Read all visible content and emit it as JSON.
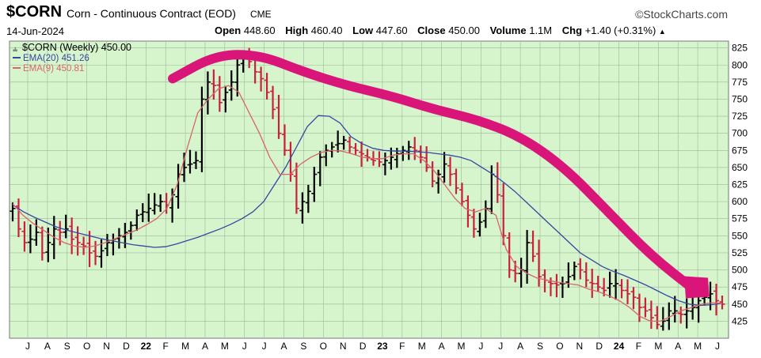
{
  "header": {
    "symbol": "$CORN",
    "description": "Corn - Continuous Contract (EOD)",
    "exchange": "CME",
    "source": "©StockCharts.com",
    "date": "14-Jun-2024",
    "open_label": "Open",
    "open": "448.60",
    "high_label": "High",
    "high": "460.40",
    "low_label": "Low",
    "low": "447.60",
    "close_label": "Close",
    "close": "450.00",
    "volume_label": "Volume",
    "volume": "1.1M",
    "chg_label": "Chg",
    "chg": "+1.40 (+0.31%)",
    "chg_arrow": "▲"
  },
  "colors": {
    "plot_bg": "#d6f5cd",
    "grid": "#9bb89b",
    "up_bar": "#000000",
    "down_bar": "#cc1f3f",
    "ema20": "#3448a0",
    "ema9": "#d9646a",
    "annotation": "#d9157a"
  },
  "chart_data": {
    "type": "line",
    "grid": true,
    "ylim": [
      400,
      835
    ],
    "yticks": [
      425,
      450,
      475,
      500,
      525,
      550,
      575,
      600,
      625,
      650,
      675,
      700,
      725,
      750,
      775,
      800,
      825
    ],
    "x_month_labels": [
      "J",
      "A",
      "S",
      "O",
      "N",
      "D",
      "22",
      "F",
      "M",
      "A",
      "M",
      "J",
      "J",
      "A",
      "S",
      "O",
      "N",
      "D",
      "23",
      "F",
      "M",
      "A",
      "M",
      "J",
      "J",
      "A",
      "S",
      "O",
      "N",
      "D",
      "24",
      "F",
      "M",
      "A",
      "M",
      "J"
    ],
    "x_bold_labels": [
      "22",
      "23",
      "24"
    ],
    "legend": [
      {
        "text": "$CORN (Weekly) 450.00",
        "color": "#000000"
      },
      {
        "text": "EMA(20) 451.26",
        "color": "#3448a0"
      },
      {
        "text": "EMA(9) 450.81",
        "color": "#d9646a"
      }
    ],
    "series": [
      {
        "name": "$CORN (Weekly)",
        "style": "ohlc",
        "values": [
          590,
          560,
          540,
          545,
          555,
          525,
          540,
          560,
          555,
          560,
          545,
          540,
          535,
          525,
          520,
          528,
          540,
          545,
          550,
          555,
          565,
          580,
          585,
          590,
          595,
          600,
          595,
          610,
          640,
          650,
          655,
          660,
          750,
          775,
          770,
          745,
          760,
          775,
          800,
          810,
          805,
          790,
          780,
          760,
          735,
          700,
          675,
          640,
          590,
          600,
          615,
          640,
          665,
          675,
          680,
          685,
          690,
          680,
          675,
          670,
          665,
          660,
          658,
          660,
          665,
          670,
          675,
          680,
          675,
          665,
          650,
          630,
          640,
          655,
          640,
          620,
          600,
          580,
          560,
          570,
          590,
          640,
          610,
          550,
          500,
          495,
          500,
          540,
          520,
          490,
          485,
          480,
          478,
          480,
          490,
          505,
          500,
          485,
          480,
          475,
          470,
          480,
          480,
          470,
          465,
          460,
          445,
          440,
          430,
          420,
          425,
          440,
          440,
          435,
          440,
          445,
          455,
          460,
          465,
          455,
          450
        ]
      },
      {
        "name": "EMA(20)",
        "style": "line",
        "values": [
          595,
          585,
          577,
          570,
          563,
          558,
          554,
          550,
          546,
          543,
          540,
          537,
          535,
          533,
          534,
          538,
          543,
          548,
          554,
          560,
          567,
          575,
          585,
          600,
          625,
          650,
          680,
          710,
          726,
          725,
          715,
          695,
          685,
          678,
          675,
          674,
          674,
          673,
          672,
          670,
          668,
          665,
          660,
          650,
          640,
          628,
          615,
          600,
          585,
          570,
          555,
          540,
          525,
          515,
          505,
          498,
          492,
          485,
          478,
          470,
          462,
          455,
          450,
          448,
          449,
          451
        ]
      },
      {
        "name": "EMA(9)",
        "style": "line",
        "values": [
          597,
          580,
          568,
          558,
          548,
          540,
          535,
          533,
          535,
          540,
          546,
          552,
          558,
          566,
          575,
          590,
          625,
          680,
          730,
          750,
          765,
          770,
          760,
          730,
          700,
          665,
          640,
          640,
          655,
          665,
          672,
          675,
          674,
          670,
          665,
          663,
          663,
          668,
          670,
          670,
          660,
          645,
          625,
          605,
          590,
          585,
          590,
          580,
          530,
          505,
          495,
          488,
          485,
          482,
          480,
          478,
          472,
          468,
          462,
          455,
          445,
          432,
          425,
          425,
          432,
          440,
          445,
          450,
          452,
          451
        ]
      }
    ],
    "annotation": {
      "type": "arrow",
      "description": "hand-drawn magenta trend arrow",
      "points": [
        [
          -2,
          780
        ],
        [
          -1,
          815
        ],
        [
          0,
          815
        ],
        [
          1,
          790
        ],
        [
          2,
          770
        ],
        [
          3,
          755
        ],
        [
          4,
          735
        ],
        [
          5,
          720
        ],
        [
          6,
          695
        ],
        [
          7,
          650
        ],
        [
          8,
          585
        ],
        [
          9,
          520
        ],
        [
          10,
          470
        ]
      ]
    }
  }
}
